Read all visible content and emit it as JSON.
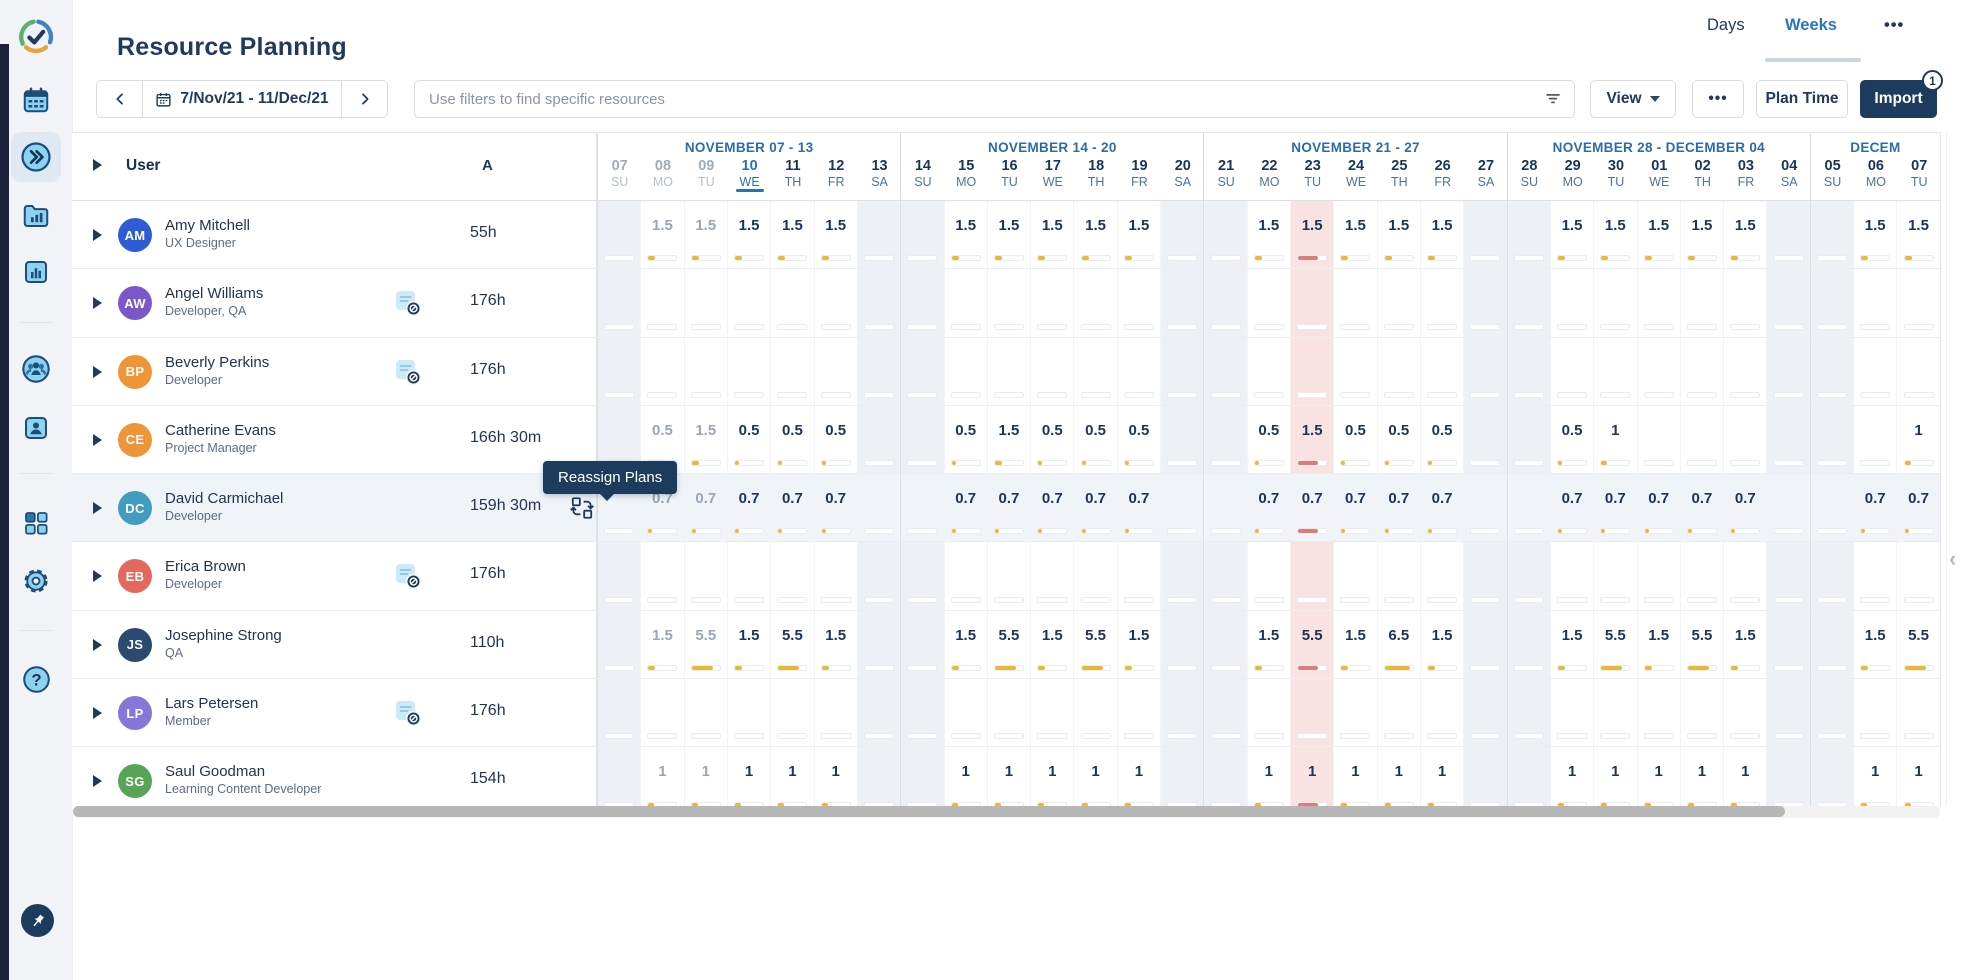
{
  "app": {
    "title": "Resource Planning"
  },
  "header": {
    "tabs": {
      "days": "Days",
      "weeks": "Weeks",
      "active": "Weeks"
    },
    "more_label": "•••"
  },
  "toolbar": {
    "date_range": "7/Nov/21 - 11/Dec/21",
    "filter_placeholder": "Use filters to find specific resources",
    "view_label": "View",
    "more_label": "•••",
    "plan_time_label": "Plan Time",
    "import_label": "Import",
    "import_badge": "1"
  },
  "sidebar": {
    "icons": [
      "logo-check",
      "calendar",
      "timeline-active",
      "reports-folder",
      "chart",
      "teams",
      "person",
      "apps-grid",
      "settings",
      "help",
      "pin"
    ]
  },
  "tooltip": {
    "text": "Reassign Plans"
  },
  "colors": {
    "accent_blue": "#2a75bb",
    "navy": "#1d3b5d",
    "bar_yellow": "#e9b838",
    "bar_red": "#dc7d7d",
    "holiday_bg": "#f9e2e2",
    "weekend_bg": "#edf1f6"
  },
  "grid": {
    "user_header": "User",
    "availability_header": "A",
    "weeks": [
      {
        "label": "NOVEMBER 07 - 13",
        "days": [
          {
            "num": "07",
            "dow": "SU",
            "weekend": true,
            "state": "past"
          },
          {
            "num": "08",
            "dow": "MO",
            "state": "past"
          },
          {
            "num": "09",
            "dow": "TU",
            "state": "past"
          },
          {
            "num": "10",
            "dow": "WE",
            "state": "today"
          },
          {
            "num": "11",
            "dow": "TH",
            "state": "future"
          },
          {
            "num": "12",
            "dow": "FR",
            "state": "future"
          },
          {
            "num": "13",
            "dow": "SA",
            "weekend": true,
            "state": "future"
          }
        ]
      },
      {
        "label": "NOVEMBER 14 - 20",
        "days": [
          {
            "num": "14",
            "dow": "SU",
            "weekend": true,
            "state": "future"
          },
          {
            "num": "15",
            "dow": "MO",
            "state": "future"
          },
          {
            "num": "16",
            "dow": "TU",
            "state": "future"
          },
          {
            "num": "17",
            "dow": "WE",
            "state": "future"
          },
          {
            "num": "18",
            "dow": "TH",
            "state": "future"
          },
          {
            "num": "19",
            "dow": "FR",
            "state": "future"
          },
          {
            "num": "20",
            "dow": "SA",
            "weekend": true,
            "state": "future"
          }
        ]
      },
      {
        "label": "NOVEMBER 21 - 27",
        "days": [
          {
            "num": "21",
            "dow": "SU",
            "weekend": true,
            "state": "future"
          },
          {
            "num": "22",
            "dow": "MO",
            "state": "future"
          },
          {
            "num": "23",
            "dow": "TU",
            "state": "future",
            "holiday": true
          },
          {
            "num": "24",
            "dow": "WE",
            "state": "future"
          },
          {
            "num": "25",
            "dow": "TH",
            "state": "future"
          },
          {
            "num": "26",
            "dow": "FR",
            "state": "future"
          },
          {
            "num": "27",
            "dow": "SA",
            "weekend": true,
            "state": "future"
          }
        ]
      },
      {
        "label": "NOVEMBER 28 - DECEMBER 04",
        "days": [
          {
            "num": "28",
            "dow": "SU",
            "weekend": true,
            "state": "future"
          },
          {
            "num": "29",
            "dow": "MO",
            "state": "future"
          },
          {
            "num": "30",
            "dow": "TU",
            "state": "future"
          },
          {
            "num": "01",
            "dow": "WE",
            "state": "future"
          },
          {
            "num": "02",
            "dow": "TH",
            "state": "future"
          },
          {
            "num": "03",
            "dow": "FR",
            "state": "future"
          },
          {
            "num": "04",
            "dow": "SA",
            "weekend": true,
            "state": "future"
          }
        ]
      },
      {
        "label": "DECEM",
        "days": [
          {
            "num": "05",
            "dow": "SU",
            "weekend": true,
            "state": "future"
          },
          {
            "num": "06",
            "dow": "MO",
            "state": "future"
          },
          {
            "num": "07",
            "dow": "TU",
            "state": "future"
          }
        ]
      }
    ],
    "users": [
      {
        "initials": "AM",
        "name": "Amy Mitchell",
        "role": "UX Designer",
        "hours": "55h",
        "avatar_color": "#2e5cd5",
        "no_plans_icon": false,
        "schedule": [
          null,
          1.5,
          1.5,
          1.5,
          1.5,
          1.5,
          null,
          null,
          1.5,
          1.5,
          1.5,
          1.5,
          1.5,
          null,
          null,
          1.5,
          1.5,
          1.5,
          1.5,
          1.5,
          null,
          null,
          1.5,
          1.5,
          1.5,
          1.5,
          1.5,
          null,
          null,
          1.5,
          1.5
        ]
      },
      {
        "initials": "AW",
        "name": "Angel Williams",
        "role": "Developer, QA",
        "hours": "176h",
        "avatar_color": "#7b57c9",
        "no_plans_icon": true,
        "schedule": []
      },
      {
        "initials": "BP",
        "name": "Beverly Perkins",
        "role": "Developer",
        "hours": "176h",
        "avatar_color": "#ee9537",
        "no_plans_icon": true,
        "schedule": []
      },
      {
        "initials": "CE",
        "name": "Catherine Evans",
        "role": "Project Manager",
        "hours": "166h 30m",
        "avatar_color": "#ee9537",
        "no_plans_icon": false,
        "schedule": [
          null,
          0.5,
          1.5,
          0.5,
          0.5,
          0.5,
          null,
          null,
          0.5,
          1.5,
          0.5,
          0.5,
          0.5,
          null,
          null,
          0.5,
          1.5,
          0.5,
          0.5,
          0.5,
          null,
          null,
          0.5,
          1,
          null,
          null,
          null,
          null,
          null,
          null,
          1
        ]
      },
      {
        "initials": "DC",
        "name": "David Carmichael",
        "role": "Developer",
        "hours": "159h 30m",
        "avatar_color": "#429cbd",
        "no_plans_icon": false,
        "highlighted": true,
        "reassign_action": true,
        "schedule": [
          null,
          0.7,
          0.7,
          0.7,
          0.7,
          0.7,
          null,
          null,
          0.7,
          0.7,
          0.7,
          0.7,
          0.7,
          null,
          null,
          0.7,
          0.7,
          0.7,
          0.7,
          0.7,
          null,
          null,
          0.7,
          0.7,
          0.7,
          0.7,
          0.7,
          null,
          null,
          0.7,
          0.7
        ]
      },
      {
        "initials": "EB",
        "name": "Erica Brown",
        "role": "Developer",
        "hours": "176h",
        "avatar_color": "#e2695f",
        "no_plans_icon": true,
        "schedule": []
      },
      {
        "initials": "JS",
        "name": "Josephine Strong",
        "role": "QA",
        "hours": "110h",
        "avatar_color": "#2b4a6f",
        "no_plans_icon": false,
        "schedule": [
          null,
          1.5,
          5.5,
          1.5,
          5.5,
          1.5,
          null,
          null,
          1.5,
          5.5,
          1.5,
          5.5,
          1.5,
          null,
          null,
          1.5,
          5.5,
          1.5,
          6.5,
          1.5,
          null,
          null,
          1.5,
          5.5,
          1.5,
          5.5,
          1.5,
          null,
          null,
          1.5,
          5.5
        ]
      },
      {
        "initials": "LP",
        "name": "Lars Petersen",
        "role": "Member",
        "hours": "176h",
        "avatar_color": "#8576d9",
        "no_plans_icon": true,
        "schedule": []
      },
      {
        "initials": "SG",
        "name": "Saul Goodman",
        "role": "Learning Content Developer",
        "hours": "154h",
        "avatar_color": "#57a456",
        "no_plans_icon": false,
        "schedule": [
          null,
          1,
          1,
          1,
          1,
          1,
          null,
          null,
          1,
          1,
          1,
          1,
          1,
          null,
          null,
          1,
          1,
          1,
          1,
          1,
          null,
          null,
          1,
          1,
          1,
          1,
          1,
          null,
          null,
          1,
          1
        ]
      }
    ]
  }
}
